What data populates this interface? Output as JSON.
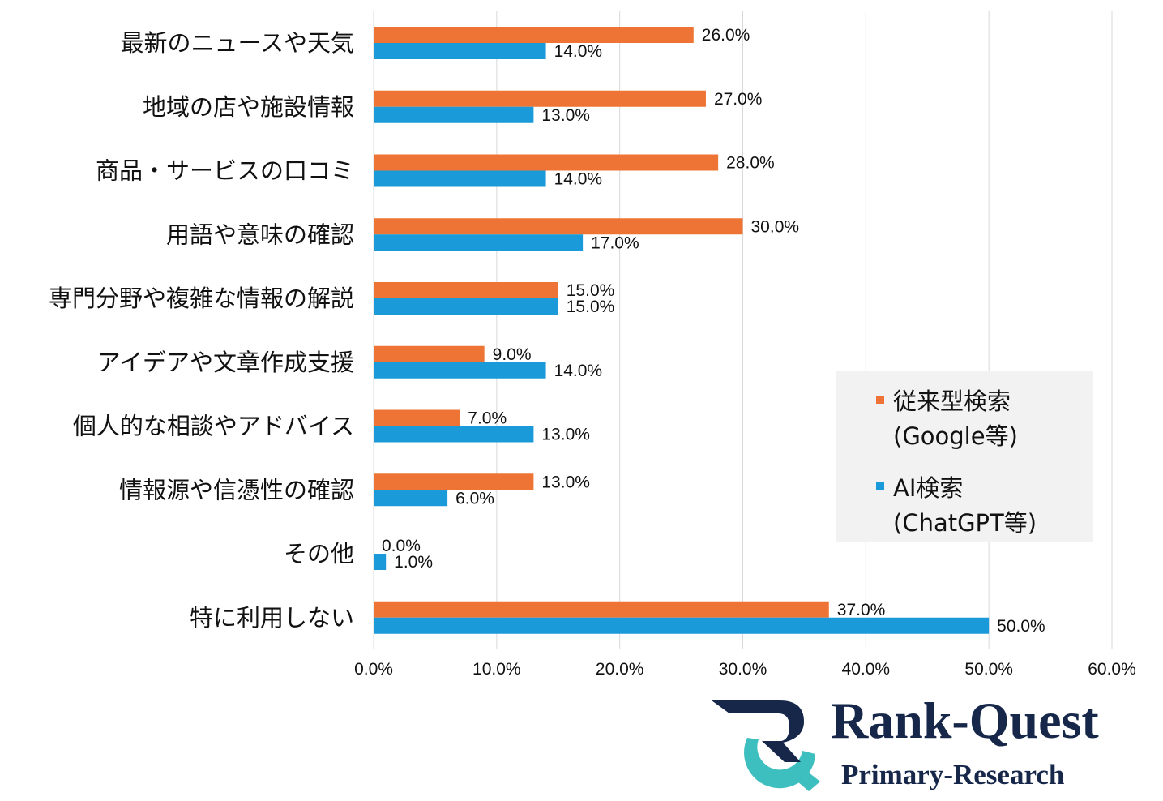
{
  "chart_data": {
    "type": "bar",
    "orientation": "horizontal",
    "categories": [
      "最新のニュースや天気",
      "地域の店や施設情報",
      "商品・サービスの口コミ",
      "用語や意味の確認",
      "専門分野や複雑な情報の解説",
      "アイデアや文章作成支援",
      "個人的な相談やアドバイス",
      "情報源や信憑性の確認",
      "その他",
      "特に利用しない"
    ],
    "series": [
      {
        "name": "従来型検索(Google等)",
        "legend_lines": [
          "従来型検索",
          "(Google等)"
        ],
        "color": "#ed7434",
        "values": [
          26.0,
          27.0,
          28.0,
          30.0,
          15.0,
          9.0,
          7.0,
          13.0,
          0.0,
          37.0
        ],
        "labels": [
          "26.0%",
          "27.0%",
          "28.0%",
          "30.0%",
          "15.0%",
          "9.0%",
          "7.0%",
          "13.0%",
          "0.0%",
          "37.0%"
        ]
      },
      {
        "name": "AI検索(ChatGPT等)",
        "legend_lines": [
          "AI検索",
          "(ChatGPT等)"
        ],
        "color": "#1a9ad9",
        "values": [
          14.0,
          13.0,
          14.0,
          17.0,
          15.0,
          14.0,
          13.0,
          6.0,
          1.0,
          50.0
        ],
        "labels": [
          "14.0%",
          "13.0%",
          "14.0%",
          "17.0%",
          "15.0%",
          "14.0%",
          "13.0%",
          "6.0%",
          "1.0%",
          "50.0%"
        ]
      }
    ],
    "xlim": [
      0,
      60
    ],
    "xticks": [
      0,
      10,
      20,
      30,
      40,
      50,
      60
    ],
    "xtick_labels": [
      "0.0%",
      "10.0%",
      "20.0%",
      "30.0%",
      "40.0%",
      "50.0%",
      "60.0%"
    ],
    "grid": "vertical",
    "legend_position": "right",
    "gridline_color": "#d9d9d9",
    "legend_bg": "#f2f2f2"
  },
  "logo": {
    "brand_text": "Rank-Quest",
    "sub_text": "Primary-Research",
    "dark_color": "#16274a",
    "teal_color": "#3dbfc0"
  }
}
